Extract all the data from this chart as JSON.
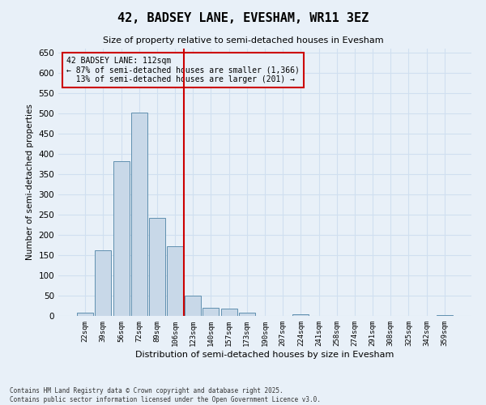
{
  "title": "42, BADSEY LANE, EVESHAM, WR11 3EZ",
  "subtitle": "Size of property relative to semi-detached houses in Evesham",
  "xlabel": "Distribution of semi-detached houses by size in Evesham",
  "ylabel": "Number of semi-detached properties",
  "categories": [
    "22sqm",
    "39sqm",
    "56sqm",
    "72sqm",
    "89sqm",
    "106sqm",
    "123sqm",
    "140sqm",
    "157sqm",
    "173sqm",
    "190sqm",
    "207sqm",
    "224sqm",
    "241sqm",
    "258sqm",
    "274sqm",
    "291sqm",
    "308sqm",
    "325sqm",
    "342sqm",
    "359sqm"
  ],
  "values": [
    8,
    163,
    383,
    503,
    242,
    173,
    51,
    21,
    18,
    8,
    0,
    0,
    4,
    0,
    0,
    0,
    0,
    0,
    0,
    0,
    3
  ],
  "bar_color": "#c8d8e8",
  "bar_edge_color": "#6090b0",
  "grid_color": "#d0dff0",
  "bg_color": "#e8f0f8",
  "property_label": "42 BADSEY LANE: 112sqm",
  "pct_smaller": 87,
  "pct_larger": 13,
  "n_smaller": 1366,
  "n_larger": 201,
  "vline_color": "#cc0000",
  "ylim": [
    0,
    660
  ],
  "yticks": [
    0,
    50,
    100,
    150,
    200,
    250,
    300,
    350,
    400,
    450,
    500,
    550,
    600,
    650
  ],
  "footnote": "Contains HM Land Registry data © Crown copyright and database right 2025.\nContains public sector information licensed under the Open Government Licence v3.0."
}
